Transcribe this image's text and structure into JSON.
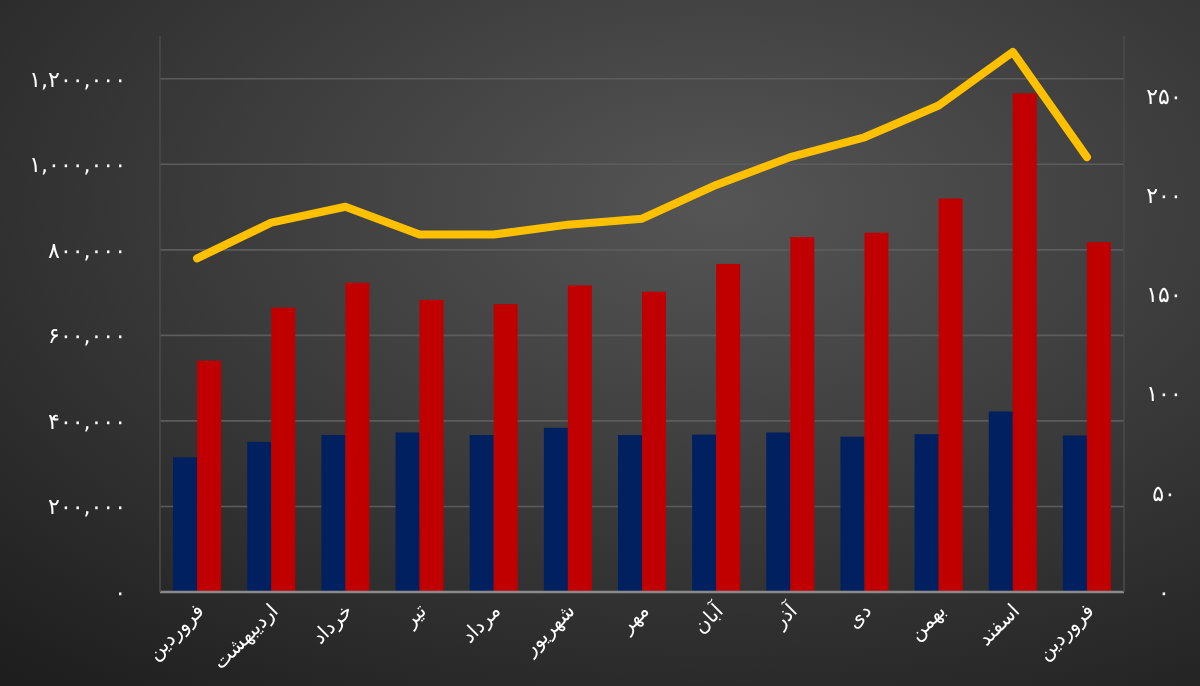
{
  "chart_data": {
    "type": "bar",
    "categories": [
      "فروردین",
      "اردیبهشت",
      "خرداد",
      "تیر",
      "مرداد",
      "شهریور",
      "مهر",
      "آبان",
      "آذر",
      "دی",
      "بهمن",
      "اسفند",
      "فروردین"
    ],
    "series": [
      {
        "color": "#002060",
        "values": [
          315000,
          351000,
          367000,
          373000,
          367000,
          384000,
          367000,
          368000,
          373000,
          363000,
          369000,
          422000,
          366000
        ]
      },
      {
        "color": "#c00000",
        "values": [
          541000,
          665000,
          723000,
          683000,
          673000,
          717000,
          702000,
          767000,
          830000,
          840000,
          920000,
          1166000,
          818000
        ]
      },
      {
        "type": "line",
        "axis": "y2",
        "color": "#ffc000",
        "values": [
          168,
          186,
          194,
          180,
          180,
          185,
          188,
          205,
          219,
          229,
          245,
          272,
          219
        ]
      }
    ],
    "ylim": [
      0,
      1300000
    ],
    "yticks": [
      {
        "value": 0,
        "label": "۰"
      },
      {
        "value": 200000,
        "label": "۲۰۰,۰۰۰"
      },
      {
        "value": 400000,
        "label": "۴۰۰,۰۰۰"
      },
      {
        "value": 600000,
        "label": "۶۰۰,۰۰۰"
      },
      {
        "value": 800000,
        "label": "۸۰۰,۰۰۰"
      },
      {
        "value": 1000000,
        "label": "۱,۰۰۰,۰۰۰"
      },
      {
        "value": 1200000,
        "label": "۱,۲۰۰,۰۰۰"
      }
    ],
    "y2lim": [
      0,
      280
    ],
    "y2ticks": [
      {
        "value": 0,
        "label": "۰"
      },
      {
        "value": 50,
        "label": "۵۰"
      },
      {
        "value": 100,
        "label": "۱۰۰"
      },
      {
        "value": 150,
        "label": "۱۵۰"
      },
      {
        "value": 200,
        "label": "۲۰۰"
      },
      {
        "value": 250,
        "label": "۲۵۰"
      }
    ],
    "grid": "y",
    "line_style": "solid"
  }
}
